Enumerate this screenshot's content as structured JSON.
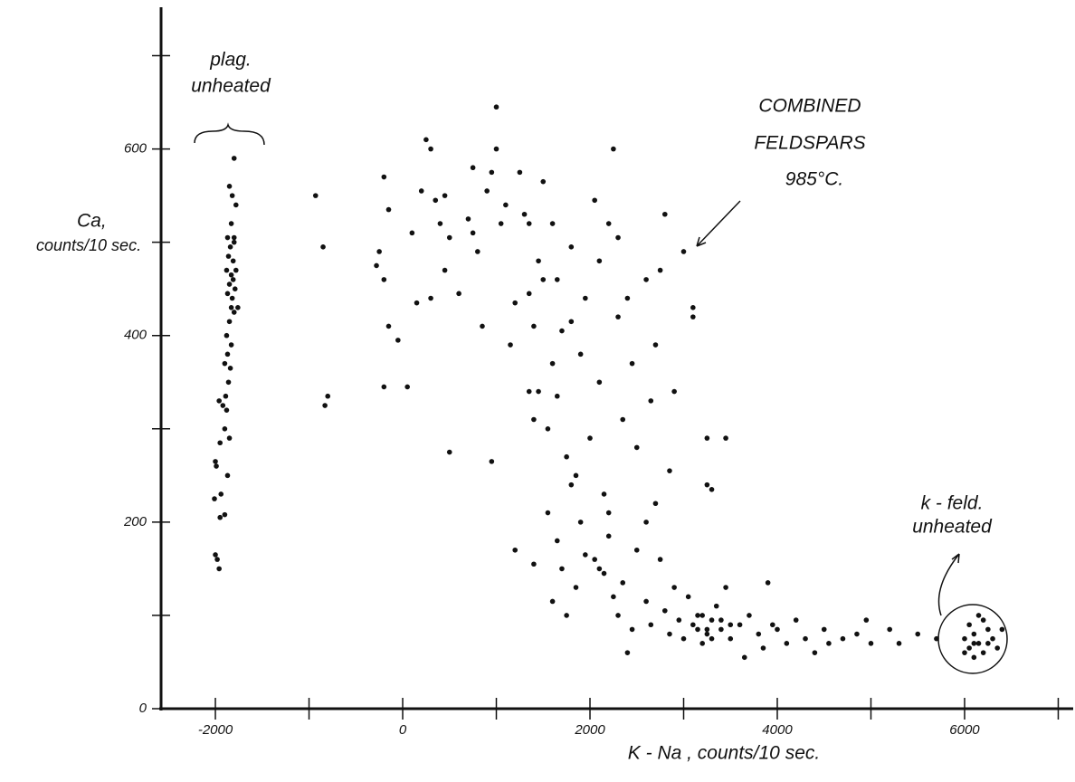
{
  "chart_data": {
    "type": "scatter",
    "ylabel": "Ca,",
    "ylabel_unit": "counts/10 sec.",
    "xlabel": "K - Na ,  counts/10 sec.",
    "annotations": [
      "plag.",
      "unheated",
      "COMBINED",
      "FELDSPARS",
      "985°C.",
      "k - feld.",
      "unheated"
    ],
    "color": "#111111",
    "xlim": [
      -2580,
      7150
    ],
    "ylim": [
      0,
      750
    ],
    "xticks": [
      -2000,
      0,
      2000,
      4000,
      6000
    ],
    "xticks_minor": [
      -1000,
      1000,
      3000,
      5000,
      7000
    ],
    "yticks": [
      0,
      200,
      400,
      600
    ],
    "yticks_minor": [
      100,
      300,
      500,
      700
    ],
    "x": [
      -1800,
      -1850,
      -1820,
      -1780,
      -1830,
      -1870,
      -1800,
      -1840,
      -1860,
      -1810,
      -1880,
      -1830,
      -1850,
      -1790,
      -1870,
      -1820,
      -1760,
      -1800,
      -1850,
      -1880,
      -1830,
      -1870,
      -1900,
      -1840,
      -1860,
      -1890,
      -1920,
      -1880,
      -1850,
      -1950,
      -2000,
      -1990,
      -1870,
      -1940,
      -2010,
      -1950,
      -1900,
      -2000,
      -1980,
      -1960,
      -1800,
      -1780,
      -1810,
      -1830,
      -1900,
      -1960,
      -930,
      -850,
      -800,
      -830,
      -250,
      -280,
      -200,
      -150,
      -200,
      -150,
      -50,
      -200,
      50,
      100,
      150,
      200,
      250,
      300,
      300,
      350,
      400,
      450,
      450,
      500,
      500,
      600,
      700,
      750,
      750,
      800,
      850,
      900,
      950,
      950,
      1000,
      1000,
      1050,
      1100,
      1150,
      1200,
      1250,
      1300,
      1350,
      1350,
      1400,
      1400,
      1450,
      1450,
      1500,
      1500,
      1550,
      1600,
      1600,
      1650,
      1650,
      1700,
      1750,
      1800,
      1800,
      1850,
      1900,
      1950,
      2000,
      2050,
      2100,
      2100,
      2150,
      2200,
      2250,
      2300,
      2300,
      2350,
      2400,
      2450,
      2500,
      2600,
      2650,
      2700,
      2750,
      2800,
      2850,
      2900,
      3000,
      3100,
      3100,
      3250,
      3250,
      3300,
      3450,
      1200,
      1400,
      1550,
      1600,
      1650,
      1700,
      1750,
      1850,
      1900,
      1950,
      2050,
      2100,
      2150,
      2200,
      2250,
      2300,
      2350,
      2400,
      2450,
      2500,
      2600,
      2650,
      2700,
      2750,
      2800,
      2850,
      2900,
      2950,
      3000,
      3050,
      3100,
      3150,
      3200,
      3250,
      3300,
      3350,
      3400,
      3450,
      3500,
      3600,
      3650,
      3700,
      3800,
      3850,
      3900,
      3950,
      4000,
      4100,
      4200,
      4300,
      4400,
      4500,
      4550,
      4700,
      4850,
      4950,
      5000,
      5200,
      5300,
      5500,
      5700,
      1350,
      1800,
      2200,
      2600,
      3250,
      3300,
      3150,
      3400,
      3500,
      3200,
      6000,
      6050,
      6100,
      6150,
      6200,
      6250,
      6100,
      6300,
      6200,
      6050,
      6350,
      6150,
      6400,
      6000,
      6250,
      6100
    ],
    "values": [
      590,
      560,
      550,
      540,
      520,
      505,
      500,
      495,
      485,
      480,
      470,
      465,
      455,
      450,
      445,
      440,
      430,
      425,
      415,
      400,
      390,
      380,
      370,
      365,
      350,
      335,
      325,
      320,
      290,
      285,
      265,
      260,
      250,
      230,
      225,
      205,
      208,
      165,
      160,
      150,
      505,
      470,
      460,
      430,
      300,
      330,
      550,
      495,
      335,
      325,
      490,
      475,
      570,
      535,
      460,
      410,
      395,
      345,
      345,
      510,
      435,
      555,
      610,
      600,
      440,
      545,
      520,
      550,
      470,
      505,
      275,
      445,
      525,
      580,
      510,
      490,
      410,
      555,
      575,
      265,
      645,
      600,
      520,
      540,
      390,
      435,
      575,
      530,
      520,
      445,
      410,
      310,
      480,
      340,
      565,
      460,
      300,
      520,
      370,
      460,
      335,
      405,
      270,
      495,
      415,
      250,
      380,
      440,
      290,
      545,
      480,
      350,
      230,
      520,
      600,
      505,
      420,
      310,
      440,
      370,
      280,
      460,
      330,
      390,
      470,
      530,
      255,
      340,
      490,
      430,
      420,
      290,
      240,
      235,
      290,
      170,
      155,
      210,
      115,
      180,
      150,
      100,
      130,
      200,
      165,
      160,
      150,
      145,
      185,
      120,
      100,
      135,
      60,
      85,
      170,
      115,
      90,
      220,
      160,
      105,
      80,
      130,
      95,
      75,
      120,
      90,
      85,
      100,
      80,
      95,
      110,
      85,
      130,
      75,
      90,
      55,
      100,
      80,
      65,
      135,
      90,
      85,
      70,
      95,
      75,
      60,
      85,
      70,
      75,
      80,
      95,
      70,
      85,
      70,
      80,
      75,
      340,
      240,
      210,
      200,
      85,
      75,
      100,
      95,
      90,
      70,
      75,
      65,
      80,
      70,
      60,
      85,
      55,
      75,
      95,
      90,
      65,
      100,
      85,
      60,
      70,
      70
    ]
  }
}
